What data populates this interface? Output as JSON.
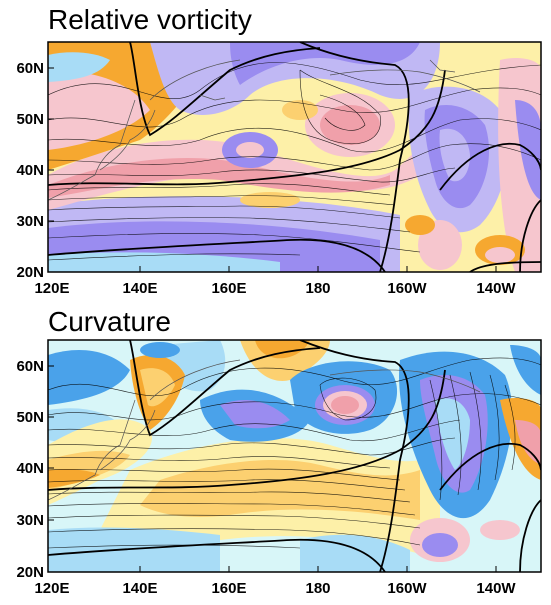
{
  "figure": {
    "panels": [
      {
        "title": "Relative vorticity",
        "longitude_labels": [
          "120E",
          "140E",
          "160E",
          "180",
          "160W",
          "140W"
        ],
        "latitude_labels": [
          "60N",
          "50N",
          "40N",
          "30N",
          "20N"
        ]
      },
      {
        "title": "Curvature",
        "longitude_labels": [
          "120E",
          "140E",
          "160E",
          "180",
          "160W",
          "140W"
        ],
        "latitude_labels": [
          "60N",
          "50N",
          "40N",
          "30N",
          "20N"
        ]
      }
    ],
    "colors": {
      "positive_strong": "#f0a0aa",
      "positive_mid": "#f6c6ce",
      "orange": "#f6a830",
      "yellow_orange": "#fcd070",
      "pale_yellow": "#fdf0a8",
      "pale_cyan": "#d8f6f8",
      "light_blue": "#a8dcf6",
      "medium_blue": "#4aa2ea",
      "purple": "#9a8cf0",
      "lavender": "#c0b8f4"
    }
  }
}
